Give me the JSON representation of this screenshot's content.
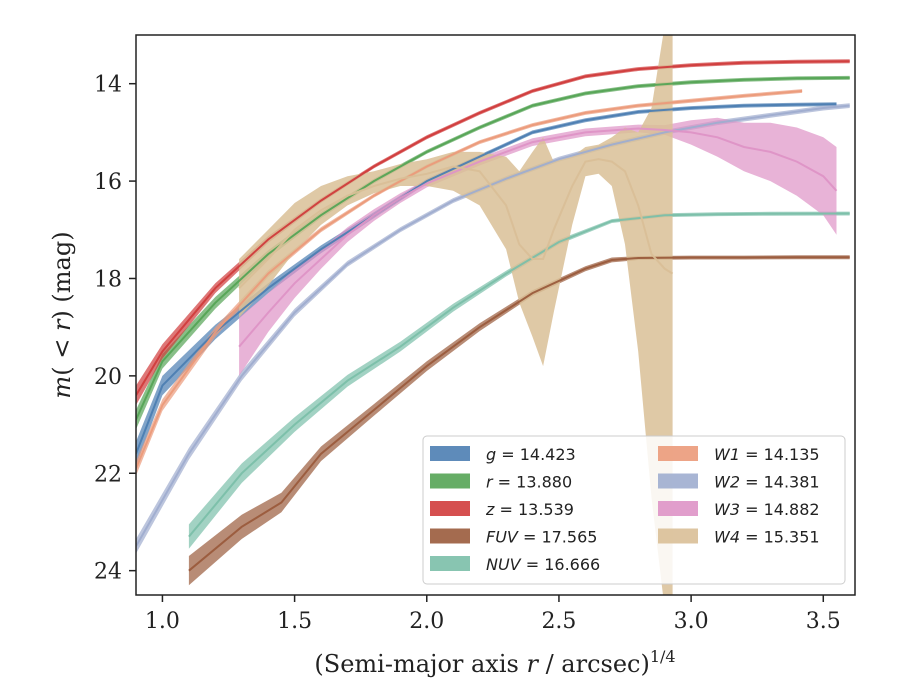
{
  "chart_data": {
    "type": "line",
    "title": "",
    "xlabel_main": "(Semi-major axis ",
    "xlabel_var": "r",
    "xlabel_tail": " / arcsec)",
    "xlabel_sup": "1/4",
    "ylabel_main": "m(",
    "ylabel_mid": " < r",
    "ylabel_tail": ") (mag)",
    "xlim": [
      0.9,
      3.62
    ],
    "ylim": [
      24.5,
      13.0
    ],
    "x_ticks": [
      1.0,
      1.5,
      2.0,
      2.5,
      3.0,
      3.5
    ],
    "x_tick_labels": [
      "1.0",
      "1.5",
      "2.0",
      "2.5",
      "3.0",
      "3.5"
    ],
    "y_ticks": [
      14,
      16,
      18,
      20,
      22,
      24
    ],
    "y_tick_labels": [
      "14",
      "16",
      "18",
      "20",
      "22",
      "24"
    ],
    "y_inverted": true,
    "grid": false,
    "legend_position": "lower-right",
    "series": [
      {
        "name": "g = 14.423",
        "band": "g",
        "value": "14.423",
        "color": "#4c7eb2",
        "x": [
          0.9,
          1.0,
          1.2,
          1.4,
          1.6,
          1.8,
          2.0,
          2.2,
          2.4,
          2.6,
          2.8,
          3.0,
          3.2,
          3.4,
          3.55
        ],
        "y": [
          21.6,
          20.2,
          19.1,
          18.2,
          17.4,
          16.7,
          16.0,
          15.5,
          15.0,
          14.75,
          14.58,
          14.5,
          14.45,
          14.43,
          14.42
        ],
        "err": [
          0.25,
          0.2,
          0.15,
          0.1,
          0.08,
          0.06,
          0.05,
          0.04,
          0.04,
          0.04,
          0.04,
          0.04,
          0.04,
          0.04,
          0.04
        ]
      },
      {
        "name": "r = 13.880",
        "band": "r",
        "value": "13.880",
        "color": "#55a455",
        "x": [
          0.9,
          1.0,
          1.2,
          1.4,
          1.6,
          1.8,
          2.0,
          2.2,
          2.4,
          2.6,
          2.8,
          3.0,
          3.2,
          3.4,
          3.6
        ],
        "y": [
          20.9,
          19.7,
          18.5,
          17.5,
          16.7,
          16.0,
          15.4,
          14.9,
          14.45,
          14.2,
          14.05,
          13.97,
          13.92,
          13.89,
          13.88
        ],
        "err": [
          0.2,
          0.15,
          0.12,
          0.08,
          0.06,
          0.05,
          0.04,
          0.04,
          0.04,
          0.04,
          0.04,
          0.04,
          0.04,
          0.04,
          0.04
        ]
      },
      {
        "name": "z = 13.539",
        "band": "z",
        "value": "13.539",
        "color": "#d03c3c",
        "x": [
          0.9,
          1.0,
          1.2,
          1.4,
          1.6,
          1.8,
          2.0,
          2.2,
          2.4,
          2.6,
          2.8,
          3.0,
          3.2,
          3.4,
          3.6
        ],
        "y": [
          20.4,
          19.5,
          18.2,
          17.2,
          16.4,
          15.7,
          15.1,
          14.6,
          14.15,
          13.85,
          13.7,
          13.62,
          13.57,
          13.55,
          13.54
        ],
        "err": [
          0.2,
          0.15,
          0.1,
          0.07,
          0.05,
          0.04,
          0.04,
          0.04,
          0.04,
          0.04,
          0.04,
          0.04,
          0.04,
          0.04,
          0.04
        ]
      },
      {
        "name": "FUV = 17.565",
        "band": "FUV",
        "value": "17.565",
        "color": "#9a5b3c",
        "x": [
          1.1,
          1.3,
          1.45,
          1.6,
          1.8,
          2.0,
          2.2,
          2.4,
          2.6,
          2.7,
          2.8,
          3.0,
          3.2,
          3.4,
          3.6
        ],
        "y": [
          24.0,
          23.1,
          22.6,
          21.6,
          20.7,
          19.8,
          19.0,
          18.3,
          17.8,
          17.62,
          17.58,
          17.57,
          17.57,
          17.565,
          17.565
        ],
        "err": [
          0.3,
          0.25,
          0.2,
          0.15,
          0.12,
          0.1,
          0.08,
          0.06,
          0.05,
          0.05,
          0.04,
          0.04,
          0.04,
          0.04,
          0.04
        ]
      },
      {
        "name": "NUV = 16.666",
        "band": "NUV",
        "value": "16.666",
        "color": "#7bbfa9",
        "x": [
          1.1,
          1.3,
          1.5,
          1.7,
          1.9,
          2.1,
          2.3,
          2.5,
          2.7,
          2.9,
          3.1,
          3.3,
          3.6
        ],
        "y": [
          23.3,
          22.0,
          21.0,
          20.1,
          19.4,
          18.6,
          17.9,
          17.25,
          16.82,
          16.7,
          16.68,
          16.67,
          16.666
        ],
        "err": [
          0.25,
          0.2,
          0.15,
          0.12,
          0.1,
          0.08,
          0.06,
          0.05,
          0.04,
          0.04,
          0.04,
          0.04,
          0.04
        ]
      },
      {
        "name": "W1 = 14.135",
        "band": "W1",
        "value": "14.135",
        "color": "#eb9a7a",
        "x": [
          0.9,
          1.0,
          1.2,
          1.4,
          1.6,
          1.8,
          2.0,
          2.2,
          2.4,
          2.6,
          2.8,
          3.0,
          3.2,
          3.42
        ],
        "y": [
          21.9,
          20.6,
          19.1,
          17.9,
          17.0,
          16.3,
          15.7,
          15.2,
          14.85,
          14.6,
          14.45,
          14.35,
          14.25,
          14.15
        ],
        "err": [
          0.15,
          0.12,
          0.1,
          0.07,
          0.05,
          0.04,
          0.04,
          0.04,
          0.04,
          0.04,
          0.04,
          0.04,
          0.04,
          0.04
        ]
      },
      {
        "name": "W2 = 14.381",
        "band": "W2",
        "value": "14.381",
        "color": "#9fadcf",
        "x": [
          0.9,
          1.1,
          1.3,
          1.5,
          1.7,
          1.9,
          2.1,
          2.3,
          2.5,
          2.7,
          2.9,
          3.1,
          3.3,
          3.5,
          3.6
        ],
        "y": [
          23.5,
          21.6,
          20.0,
          18.7,
          17.7,
          17.0,
          16.4,
          15.95,
          15.55,
          15.25,
          15.0,
          14.8,
          14.65,
          14.5,
          14.45
        ],
        "err": [
          0.15,
          0.12,
          0.1,
          0.08,
          0.06,
          0.05,
          0.05,
          0.05,
          0.05,
          0.05,
          0.05,
          0.05,
          0.05,
          0.05,
          0.05
        ]
      },
      {
        "name": "W3 = 14.882",
        "band": "W3",
        "value": "14.882",
        "color": "#de93c6",
        "x": [
          1.29,
          1.4,
          1.5,
          1.6,
          1.7,
          1.8,
          1.9,
          2.0,
          2.2,
          2.4,
          2.6,
          2.8,
          2.9,
          3.0,
          3.1,
          3.2,
          3.3,
          3.4,
          3.5,
          3.55
        ],
        "y": [
          19.4,
          18.7,
          18.1,
          17.6,
          17.1,
          16.7,
          16.35,
          16.05,
          15.6,
          15.2,
          15.0,
          14.92,
          14.95,
          15.0,
          15.1,
          15.3,
          15.4,
          15.6,
          15.9,
          16.2
        ],
        "err": [
          0.6,
          0.4,
          0.3,
          0.2,
          0.15,
          0.12,
          0.1,
          0.08,
          0.08,
          0.08,
          0.08,
          0.08,
          0.1,
          0.25,
          0.4,
          0.5,
          0.6,
          0.7,
          0.8,
          0.9
        ]
      },
      {
        "name": "W4 = 15.351",
        "band": "W4",
        "value": "15.351",
        "color": "#d9bf97",
        "x": [
          1.29,
          1.4,
          1.5,
          1.6,
          1.7,
          1.8,
          1.9,
          2.0,
          2.1,
          2.2,
          2.3,
          2.35,
          2.4,
          2.44,
          2.48,
          2.55,
          2.6,
          2.65,
          2.7,
          2.75,
          2.8,
          2.85,
          2.9,
          2.93
        ],
        "y": [
          18.2,
          17.6,
          17.0,
          16.6,
          16.3,
          16.1,
          15.95,
          15.85,
          15.7,
          15.8,
          16.5,
          17.3,
          17.6,
          17.6,
          17.0,
          16.1,
          15.6,
          15.55,
          15.6,
          15.8,
          16.5,
          17.5,
          17.8,
          17.9
        ],
        "err_lo": [
          0.6,
          0.55,
          0.45,
          0.3,
          0.2,
          0.15,
          0.15,
          0.25,
          0.5,
          0.7,
          0.9,
          1.2,
          1.6,
          2.2,
          1.7,
          0.8,
          0.3,
          0.3,
          0.5,
          1.5,
          3.0,
          5.0,
          7.0,
          7.0
        ],
        "err_hi": [
          0.6,
          0.6,
          0.55,
          0.5,
          0.4,
          0.3,
          0.3,
          0.3,
          0.3,
          0.4,
          1.0,
          1.5,
          2.2,
          2.5,
          1.4,
          0.6,
          0.3,
          0.3,
          0.5,
          0.9,
          1.5,
          3.0,
          5.0,
          5.0
        ]
      }
    ]
  }
}
